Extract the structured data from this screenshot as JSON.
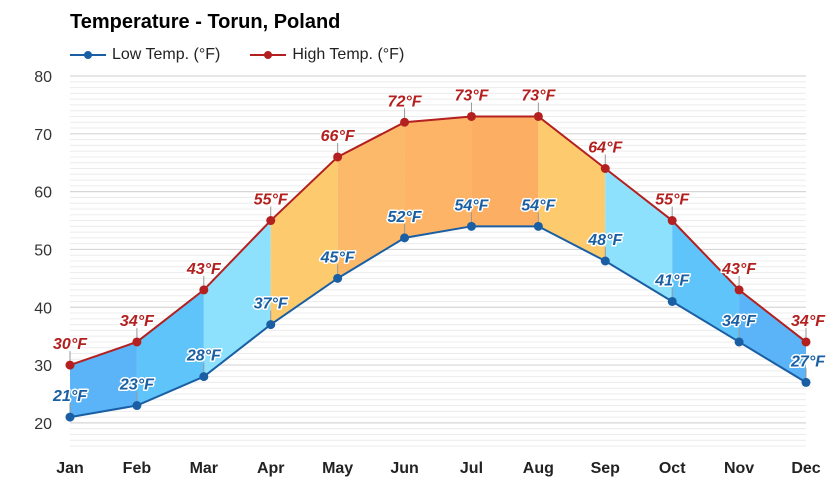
{
  "header": {
    "title": "Temperature - Torun, Poland"
  },
  "legend": [
    {
      "label": "Low Temp. (°F)",
      "color": "#1a5fa3"
    },
    {
      "label": "High Temp. (°F)",
      "color": "#b3201f"
    }
  ],
  "chart_data": {
    "type": "line",
    "title": "Temperature - Torun, Poland",
    "xlabel": "",
    "ylabel": "",
    "categories": [
      "Jan",
      "Feb",
      "Mar",
      "Apr",
      "May",
      "Jun",
      "Jul",
      "Aug",
      "Sep",
      "Oct",
      "Nov",
      "Dec"
    ],
    "series": [
      {
        "name": "Low Temp. (°F)",
        "color": "#1a5fa3",
        "values": [
          21,
          23,
          28,
          37,
          45,
          52,
          54,
          54,
          48,
          41,
          34,
          27
        ]
      },
      {
        "name": "High Temp. (°F)",
        "color": "#b3201f",
        "values": [
          30,
          34,
          43,
          55,
          66,
          72,
          73,
          73,
          64,
          55,
          43,
          34
        ]
      }
    ],
    "band_fill_colors": [
      "#5ab4f7",
      "#5ec4fa",
      "#8ee1fd",
      "#fdcb6e",
      "#fdb96a",
      "#fdb466",
      "#fcaf63",
      "#fdcb6e",
      "#8ee1fd",
      "#5ec4fa",
      "#5ab4f7"
    ],
    "yticks": [
      20,
      30,
      40,
      50,
      60,
      70,
      80
    ],
    "ylim": [
      16,
      80
    ],
    "grid": true,
    "minor_grid_step": 1,
    "legend_position": "top-left",
    "data_label_suffix": "°F"
  }
}
